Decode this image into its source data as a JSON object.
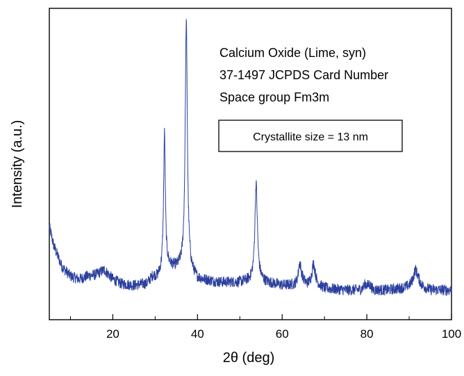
{
  "chart_data": {
    "type": "line",
    "xlabel": "2θ (deg)",
    "ylabel": "Intensity (a.u.)",
    "xlim": [
      5,
      100
    ],
    "ylim": [
      0,
      100
    ],
    "x_ticks": [
      20,
      40,
      60,
      80,
      100
    ],
    "x_tick_labels": [
      "20",
      "40",
      "60",
      "80",
      "100"
    ],
    "y_tick_labels": [],
    "grid": false,
    "line_color": "#2b3f9e",
    "annotations": [
      "Calcium Oxide (Lime, syn)",
      "37-1497 JCPDS Card Number",
      "Space group Fm3m"
    ],
    "boxed_annotation": "Crystallite size = 13 nm",
    "baseline": [
      [
        5,
        30
      ],
      [
        6,
        24
      ],
      [
        8,
        17
      ],
      [
        10,
        14
      ],
      [
        12,
        13
      ],
      [
        14,
        14
      ],
      [
        16,
        14.5
      ],
      [
        18,
        16
      ],
      [
        19,
        14.5
      ],
      [
        20,
        13
      ],
      [
        22,
        11.5
      ],
      [
        25,
        11
      ],
      [
        28,
        11.5
      ],
      [
        29.5,
        14
      ],
      [
        30.5,
        13.5
      ],
      [
        31.5,
        15
      ],
      [
        33,
        17
      ],
      [
        35,
        16.5
      ],
      [
        36.5,
        17
      ],
      [
        37.2,
        17
      ],
      [
        38,
        16.5
      ],
      [
        38.6,
        15
      ],
      [
        40,
        13
      ],
      [
        45,
        12
      ],
      [
        50,
        12
      ],
      [
        53,
        12.5
      ],
      [
        54.3,
        13
      ],
      [
        56,
        12
      ],
      [
        60,
        11
      ],
      [
        64,
        11
      ],
      [
        64.8,
        12
      ],
      [
        66,
        11
      ],
      [
        67.8,
        11.5
      ],
      [
        70,
        10
      ],
      [
        75,
        9.5
      ],
      [
        80,
        9.5
      ],
      [
        80.6,
        11
      ],
      [
        81.5,
        9.5
      ],
      [
        85,
        9.5
      ],
      [
        88,
        10
      ],
      [
        90,
        10.5
      ],
      [
        91.5,
        11
      ],
      [
        92.2,
        11.5
      ],
      [
        93,
        10.5
      ],
      [
        95,
        9.5
      ],
      [
        100,
        9.5
      ]
    ],
    "peaks": [
      {
        "x": 32.2,
        "height": 44,
        "width": 0.25
      },
      {
        "x": 37.35,
        "height": 79,
        "width": 0.3
      },
      {
        "x": 53.85,
        "height": 31,
        "width": 0.35
      },
      {
        "x": 64.15,
        "height": 7,
        "width": 0.4
      },
      {
        "x": 67.4,
        "height": 6.5,
        "width": 0.45
      },
      {
        "x": 91.5,
        "height": 5,
        "width": 0.6
      },
      {
        "x": 79.7,
        "height": 2,
        "width": 0.5
      }
    ],
    "noise_amplitude": 1.8
  }
}
